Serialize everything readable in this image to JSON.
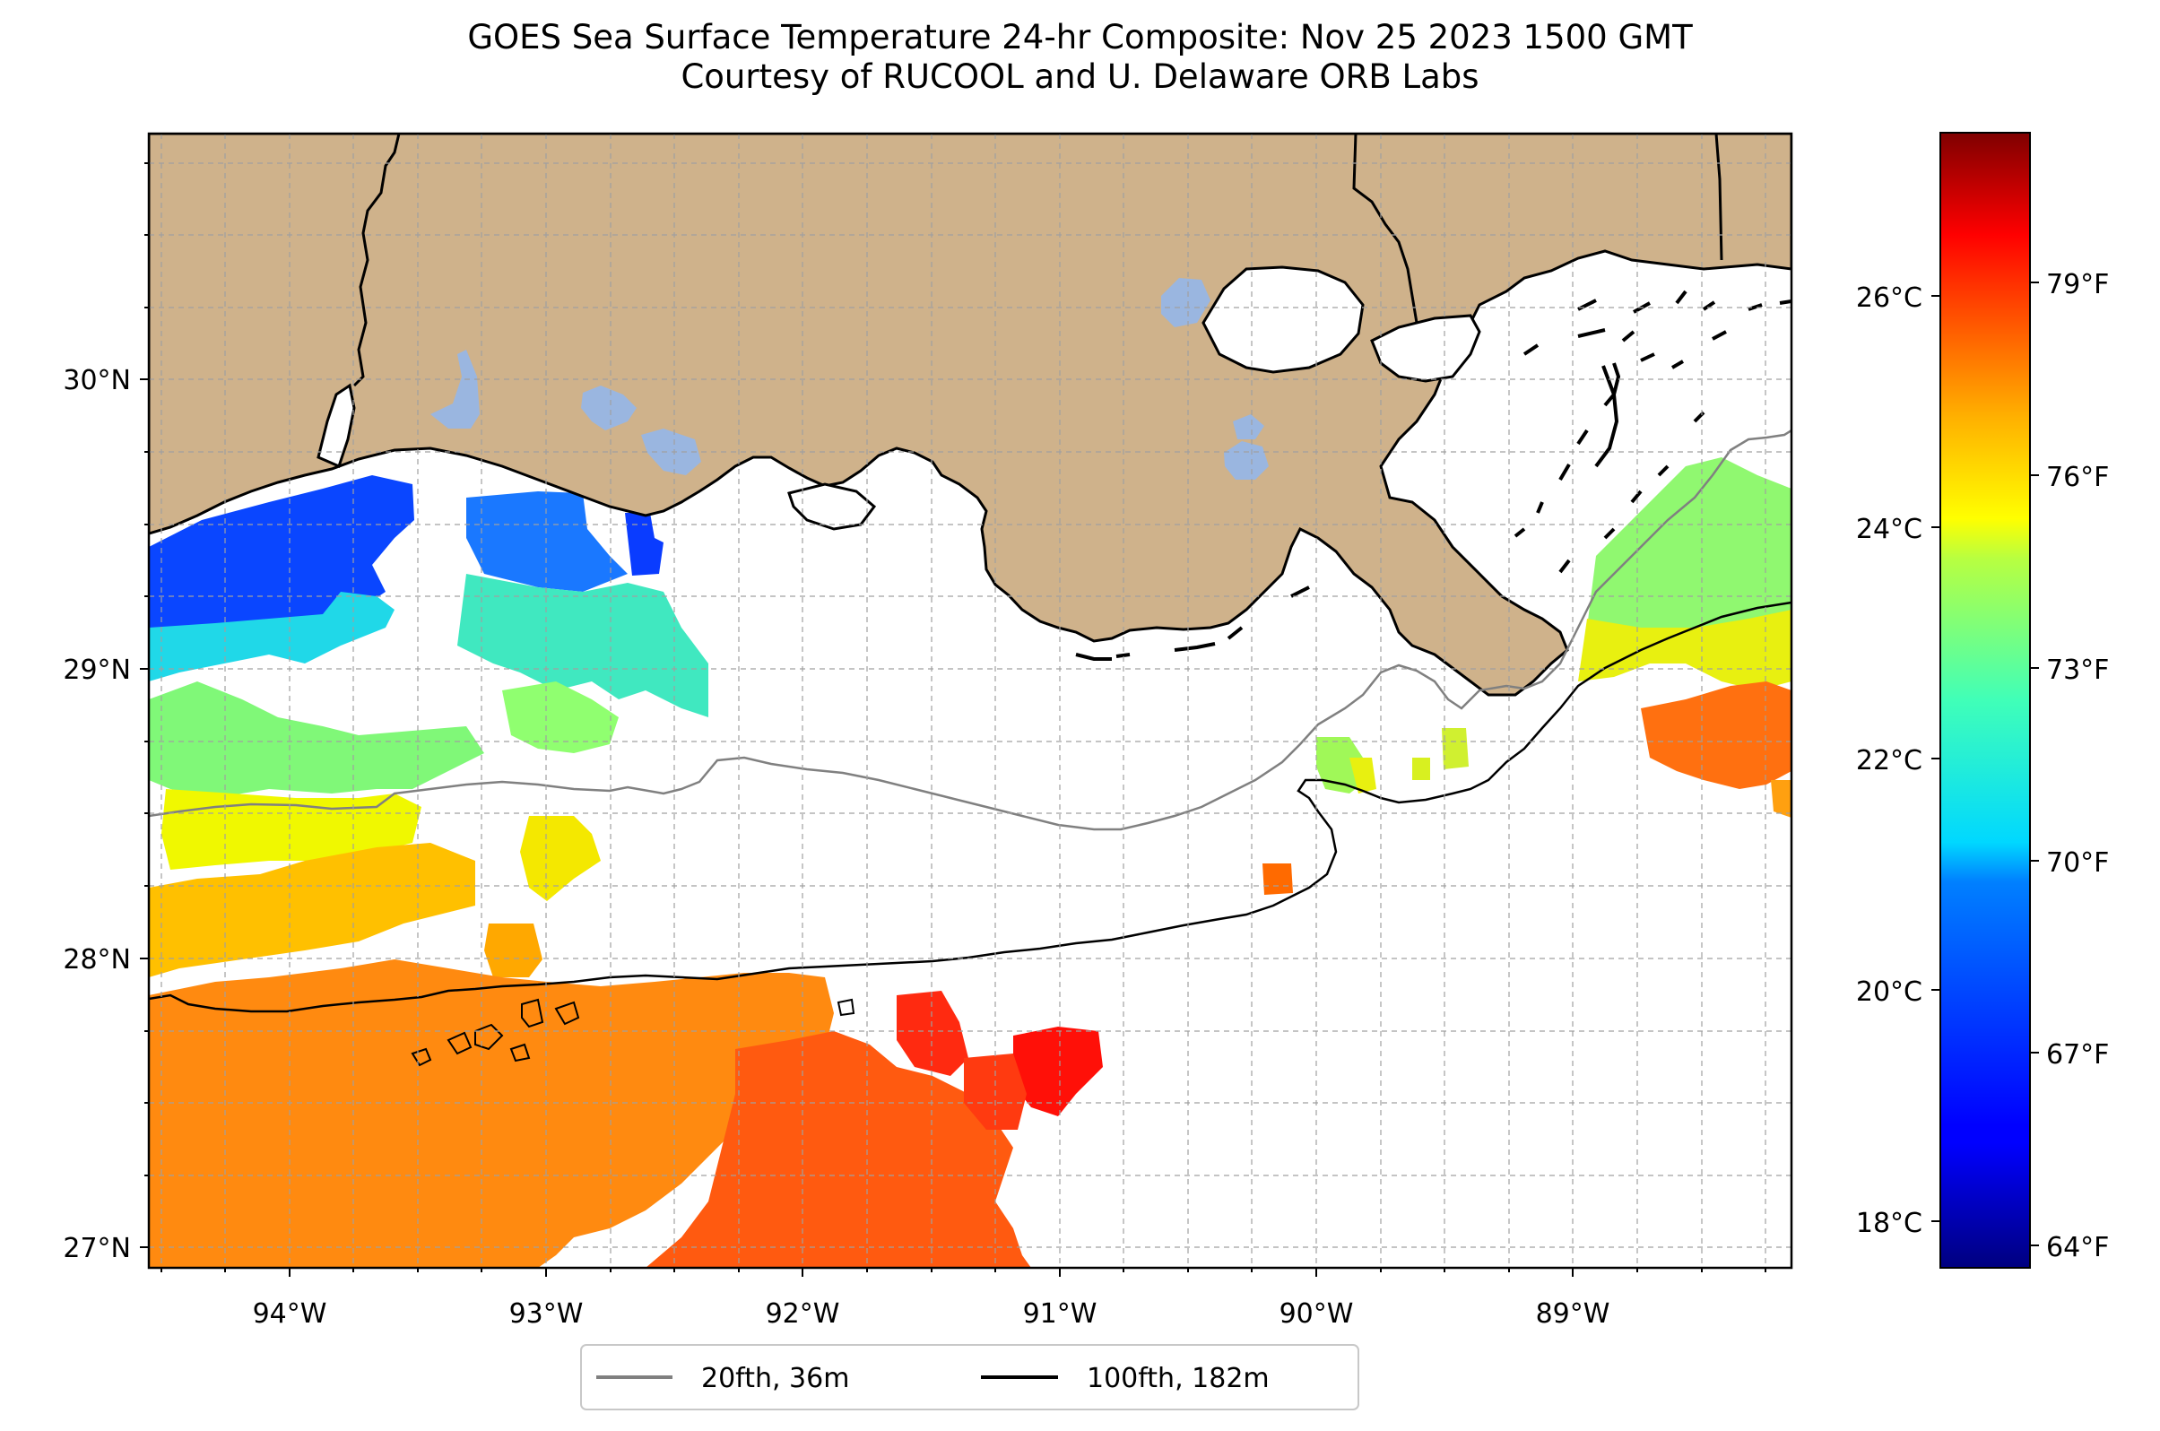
{
  "title": {
    "line1": "GOES Sea Surface Temperature 24-hr Composite: Nov 25 2023 1500 GMT",
    "line2": "Courtesy of RUCOOL and U. Delaware ORB Labs"
  },
  "map": {
    "lon_range": [
      -94.55,
      -88.2
    ],
    "lat_range": [
      26.93,
      30.82
    ],
    "lon_ticks": [
      "94°W",
      "93°W",
      "92°W",
      "91°W",
      "90°W",
      "89°W"
    ],
    "lat_ticks": [
      "30°N",
      "29°N",
      "28°N",
      "27°N"
    ],
    "gridlines": true,
    "land_color": "#cfb28b",
    "lake_color": "#9ab6e0",
    "ocean_color": "#ffffff"
  },
  "colorbar": {
    "colormap": "jet",
    "range_c": [
      17.6,
      27.6
    ],
    "celsius_ticks": [
      "26°C",
      "24°C",
      "22°C",
      "20°C",
      "18°C"
    ],
    "fahrenheit_ticks": [
      "79°F",
      "76°F",
      "73°F",
      "70°F",
      "67°F",
      "64°F"
    ]
  },
  "legend": {
    "placement": "below map, center",
    "entries": [
      {
        "label": "20fth, 36m",
        "color": "#808080"
      },
      {
        "label": "100fth, 182m",
        "color": "#000000"
      }
    ]
  }
}
